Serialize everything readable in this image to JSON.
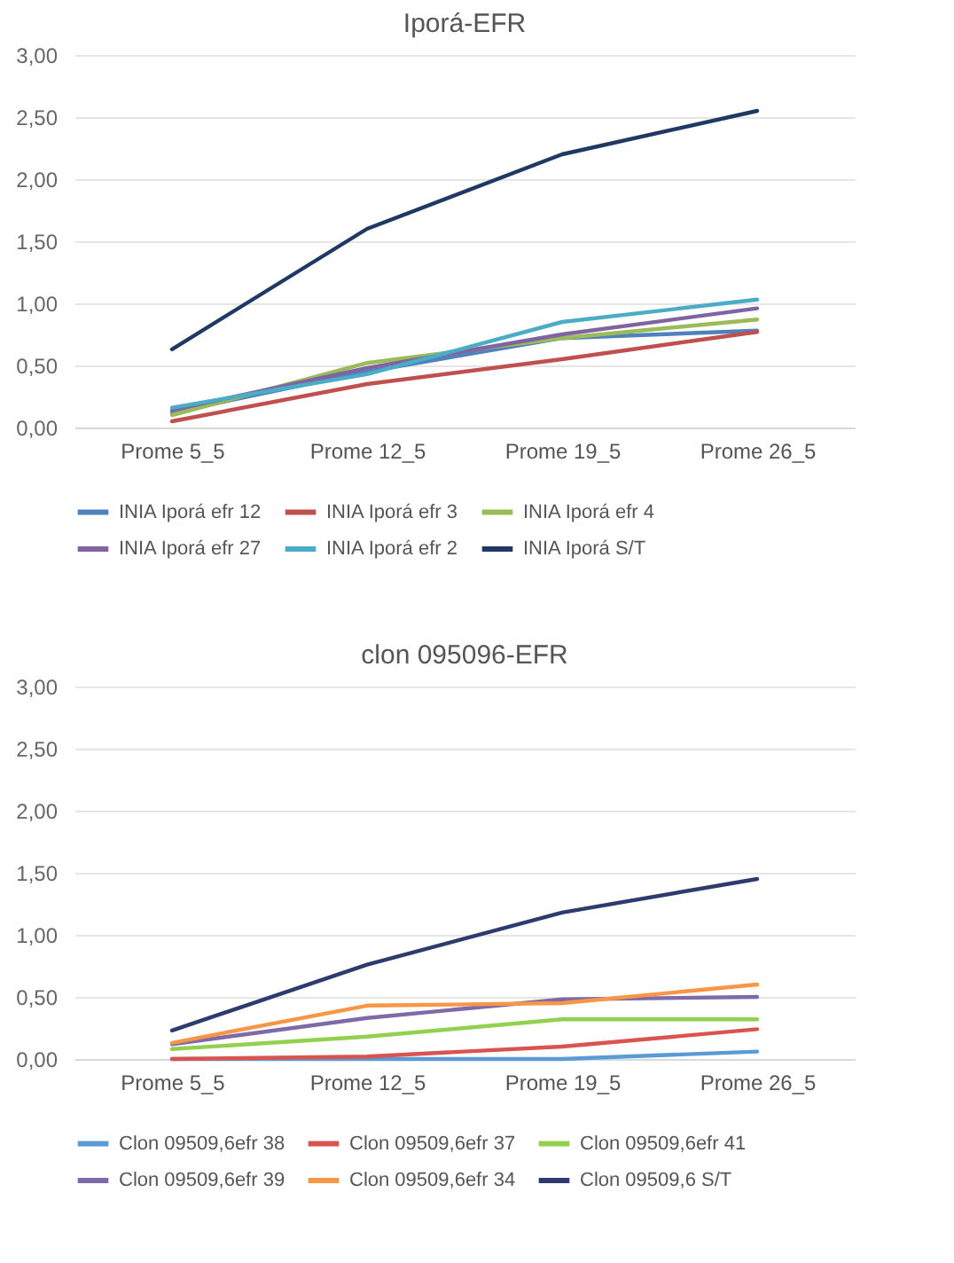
{
  "chart_data": [
    {
      "type": "line",
      "title": "Iporá-EFR",
      "categories": [
        "Prome 5_5",
        "Prome 12_5",
        "Prome 19_5",
        "Prome 26_5"
      ],
      "ylim": [
        0,
        3
      ],
      "yticks": [
        {
          "value": 0,
          "label": "0,00"
        },
        {
          "value": 0.5,
          "label": "0,50"
        },
        {
          "value": 1,
          "label": "1,00"
        },
        {
          "value": 1.5,
          "label": "1,50"
        },
        {
          "value": 2,
          "label": "2,00"
        },
        {
          "value": 2.5,
          "label": "2,50"
        },
        {
          "value": 3,
          "label": "3,00"
        }
      ],
      "grid": "y",
      "legend": "bottom",
      "series": [
        {
          "name": "INIA Iporá efr 12",
          "color": "#4f81bd",
          "values": [
            0.12,
            0.45,
            0.72,
            0.78
          ]
        },
        {
          "name": "INIA Iporá efr 3",
          "color": "#c0504d",
          "values": [
            0.05,
            0.35,
            0.55,
            0.77
          ]
        },
        {
          "name": "INIA Iporá efr 4",
          "color": "#9bbb59",
          "values": [
            0.1,
            0.52,
            0.72,
            0.87
          ]
        },
        {
          "name": "INIA Iporá efr 27",
          "color": "#8064a2",
          "values": [
            0.14,
            0.48,
            0.75,
            0.96
          ]
        },
        {
          "name": "INIA Iporá efr 2",
          "color": "#4bacc6",
          "values": [
            0.16,
            0.43,
            0.85,
            1.03
          ]
        },
        {
          "name": "INIA Iporá S/T",
          "color": "#1f3864",
          "values": [
            0.63,
            1.6,
            2.2,
            2.55
          ]
        }
      ]
    },
    {
      "type": "line",
      "title": "clon 095096-EFR",
      "categories": [
        "Prome 5_5",
        "Prome 12_5",
        "Prome 19_5",
        "Prome 26_5"
      ],
      "ylim": [
        0,
        3
      ],
      "yticks": [
        {
          "value": 0,
          "label": "0,00"
        },
        {
          "value": 0.5,
          "label": "0,50"
        },
        {
          "value": 1,
          "label": "1,00"
        },
        {
          "value": 1.5,
          "label": "1,50"
        },
        {
          "value": 2,
          "label": "2,00"
        },
        {
          "value": 2.5,
          "label": "2,50"
        },
        {
          "value": 3,
          "label": "3,00"
        }
      ],
      "grid": "y",
      "legend": "bottom",
      "series": [
        {
          "name": "Clon 09509,6efr 38",
          "color": "#5b9bd5",
          "values": [
            0.0,
            0.0,
            0.0,
            0.06
          ]
        },
        {
          "name": "Clon 09509,6efr 37",
          "color": "#d9534f",
          "values": [
            0.0,
            0.02,
            0.1,
            0.24
          ]
        },
        {
          "name": "Clon 09509,6efr 41",
          "color": "#92d050",
          "values": [
            0.08,
            0.18,
            0.32,
            0.32
          ]
        },
        {
          "name": "Clon 09509,6efr 39",
          "color": "#7e6aa8",
          "values": [
            0.12,
            0.33,
            0.48,
            0.5
          ]
        },
        {
          "name": "Clon 09509,6efr 34",
          "color": "#f79646",
          "values": [
            0.13,
            0.43,
            0.45,
            0.6
          ]
        },
        {
          "name": "Clon 09509,6 S/T",
          "color": "#2e3b6e",
          "values": [
            0.23,
            0.76,
            1.18,
            1.45
          ]
        }
      ]
    }
  ]
}
